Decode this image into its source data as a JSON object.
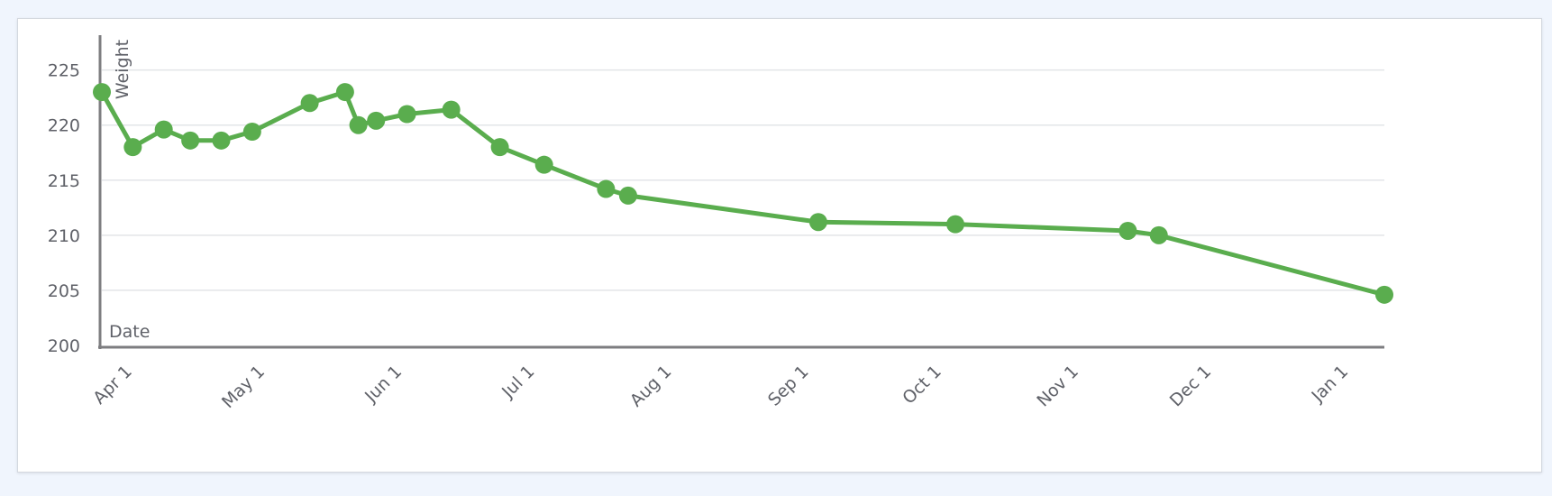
{
  "chart_data": {
    "type": "line",
    "xlabel": "Date",
    "ylabel": "Weight",
    "ylim": [
      200,
      228
    ],
    "yticks": [
      200,
      205,
      210,
      215,
      220,
      225
    ],
    "xlim": [
      "2019-03-25",
      "2020-01-09"
    ],
    "xticks": [
      {
        "date": "2019-04-01",
        "label": "Apr 1"
      },
      {
        "date": "2019-05-01",
        "label": "May 1"
      },
      {
        "date": "2019-06-01",
        "label": "Jun 1"
      },
      {
        "date": "2019-07-01",
        "label": "Jul 1"
      },
      {
        "date": "2019-08-01",
        "label": "Aug 1"
      },
      {
        "date": "2019-09-01",
        "label": "Sep 1"
      },
      {
        "date": "2019-10-01",
        "label": "Oct 1"
      },
      {
        "date": "2019-11-01",
        "label": "Nov 1"
      },
      {
        "date": "2019-12-01",
        "label": "Dec 1"
      },
      {
        "date": "2020-01-01",
        "label": "Jan 1"
      }
    ],
    "grid": true,
    "series": [
      {
        "color": "#5aad4e",
        "points": [
          {
            "x": "2019-03-25",
            "y": 223.0
          },
          {
            "x": "2019-04-01",
            "y": 218.0
          },
          {
            "x": "2019-04-08",
            "y": 219.6
          },
          {
            "x": "2019-04-14",
            "y": 218.6
          },
          {
            "x": "2019-04-21",
            "y": 218.6
          },
          {
            "x": "2019-04-28",
            "y": 219.4
          },
          {
            "x": "2019-05-11",
            "y": 222.0
          },
          {
            "x": "2019-05-19",
            "y": 223.0
          },
          {
            "x": "2019-05-22",
            "y": 220.0
          },
          {
            "x": "2019-05-26",
            "y": 220.4
          },
          {
            "x": "2019-06-02",
            "y": 221.0
          },
          {
            "x": "2019-06-12",
            "y": 221.4
          },
          {
            "x": "2019-06-23",
            "y": 218.0
          },
          {
            "x": "2019-07-03",
            "y": 216.4
          },
          {
            "x": "2019-07-17",
            "y": 214.2
          },
          {
            "x": "2019-07-22",
            "y": 213.6
          },
          {
            "x": "2019-09-03",
            "y": 211.2
          },
          {
            "x": "2019-10-04",
            "y": 211.0
          },
          {
            "x": "2019-11-12",
            "y": 210.4
          },
          {
            "x": "2019-11-19",
            "y": 210.0
          },
          {
            "x": "2020-01-09",
            "y": 204.6
          }
        ]
      }
    ]
  }
}
